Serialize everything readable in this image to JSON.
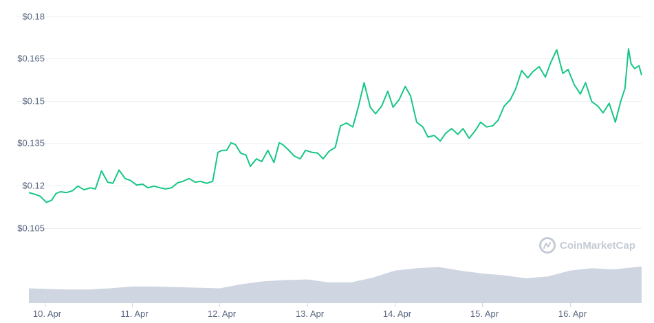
{
  "chart_data": {
    "type": "line",
    "y_tick_labels": [
      "$0.105",
      "$0.12",
      "$0.135",
      "$0.15",
      "$0.165",
      "$0.18"
    ],
    "y_tick_values": [
      0.105,
      0.12,
      0.135,
      0.15,
      0.165,
      0.18
    ],
    "ylim": [
      0.1,
      0.18
    ],
    "x_tick_labels": [
      "10. Apr",
      "11. Apr",
      "12. Apr",
      "13. Apr",
      "14. Apr",
      "15. Apr",
      "16. Apr"
    ],
    "x_tick_values": [
      0,
      1,
      2,
      3,
      4,
      5,
      6
    ],
    "xlim": [
      -0.18,
      6.82
    ],
    "grid": true,
    "line_color": "#16c784",
    "volume_color": "#cfd6e2",
    "series": [
      {
        "x": [
          -0.18,
          -0.12,
          -0.05,
          0.02,
          0.08,
          0.13,
          0.18,
          0.25,
          0.32,
          0.38,
          0.45,
          0.52,
          0.58,
          0.65,
          0.72,
          0.78,
          0.85,
          0.92,
          0.98,
          1.05,
          1.12,
          1.18,
          1.25,
          1.32,
          1.38,
          1.45,
          1.52,
          1.58,
          1.65,
          1.72,
          1.78,
          1.85,
          1.92,
          1.98,
          2.03,
          2.08,
          2.13,
          2.18,
          2.24,
          2.3,
          2.35,
          2.42,
          2.48,
          2.55,
          2.62,
          2.68,
          2.72,
          2.78,
          2.85,
          2.92,
          2.98,
          3.05,
          3.12,
          3.18,
          3.25,
          3.32,
          3.38,
          3.45,
          3.52,
          3.58,
          3.65,
          3.72,
          3.78,
          3.85,
          3.92,
          3.98,
          4.05,
          4.12,
          4.18,
          4.25,
          4.32,
          4.38,
          4.45,
          4.52,
          4.58,
          4.65,
          4.72,
          4.78,
          4.85,
          4.92,
          4.98,
          5.05,
          5.12,
          5.18,
          5.25,
          5.32,
          5.38,
          5.45,
          5.52,
          5.58,
          5.65,
          5.72,
          5.78,
          5.85,
          5.92,
          5.98,
          6.05,
          6.12,
          6.18,
          6.25,
          6.32,
          6.38,
          6.45,
          6.52,
          6.58,
          6.63,
          6.67,
          6.7,
          6.74,
          6.79,
          6.82
        ],
        "y": [
          0.1175,
          0.117,
          0.1162,
          0.114,
          0.1148,
          0.1172,
          0.1178,
          0.1175,
          0.1182,
          0.1198,
          0.1185,
          0.1192,
          0.1188,
          0.1252,
          0.1212,
          0.1208,
          0.1255,
          0.1225,
          0.1218,
          0.1202,
          0.1205,
          0.1192,
          0.1198,
          0.1192,
          0.1188,
          0.1192,
          0.121,
          0.1215,
          0.1225,
          0.1212,
          0.1215,
          0.1208,
          0.1215,
          0.1318,
          0.1325,
          0.1325,
          0.1352,
          0.1345,
          0.1315,
          0.1308,
          0.1268,
          0.1295,
          0.1285,
          0.1325,
          0.1282,
          0.1352,
          0.1345,
          0.1328,
          0.1305,
          0.1295,
          0.1325,
          0.1318,
          0.1315,
          0.1295,
          0.1322,
          0.1335,
          0.1412,
          0.1422,
          0.1408,
          0.1475,
          0.1565,
          0.1478,
          0.1455,
          0.1482,
          0.1535,
          0.1478,
          0.1505,
          0.1552,
          0.1518,
          0.1425,
          0.1408,
          0.1372,
          0.1378,
          0.1358,
          0.1385,
          0.1402,
          0.1382,
          0.1402,
          0.1368,
          0.1395,
          0.1425,
          0.1408,
          0.1412,
          0.1432,
          0.1482,
          0.1505,
          0.1542,
          0.1608,
          0.1582,
          0.1605,
          0.1622,
          0.1585,
          0.1635,
          0.1682,
          0.1598,
          0.1612,
          0.1558,
          0.1525,
          0.1565,
          0.1498,
          0.1482,
          0.1458,
          0.1492,
          0.1425,
          0.1498,
          0.1545,
          0.1685,
          0.1632,
          0.1615,
          0.1625,
          0.1592
        ]
      }
    ],
    "volume": {
      "x": [
        -0.18,
        0.0,
        0.25,
        0.5,
        0.75,
        1.0,
        1.25,
        1.5,
        1.75,
        2.0,
        2.25,
        2.5,
        2.75,
        3.0,
        3.25,
        3.5,
        3.75,
        4.0,
        4.25,
        4.5,
        4.75,
        5.0,
        5.25,
        5.5,
        5.75,
        6.0,
        6.25,
        6.5,
        6.82
      ],
      "values": [
        0.25,
        0.24,
        0.23,
        0.23,
        0.25,
        0.28,
        0.28,
        0.27,
        0.26,
        0.25,
        0.32,
        0.37,
        0.39,
        0.4,
        0.35,
        0.35,
        0.43,
        0.55,
        0.59,
        0.61,
        0.55,
        0.5,
        0.47,
        0.42,
        0.45,
        0.55,
        0.59,
        0.57,
        0.62
      ]
    }
  },
  "watermark": "CoinMarketCap"
}
